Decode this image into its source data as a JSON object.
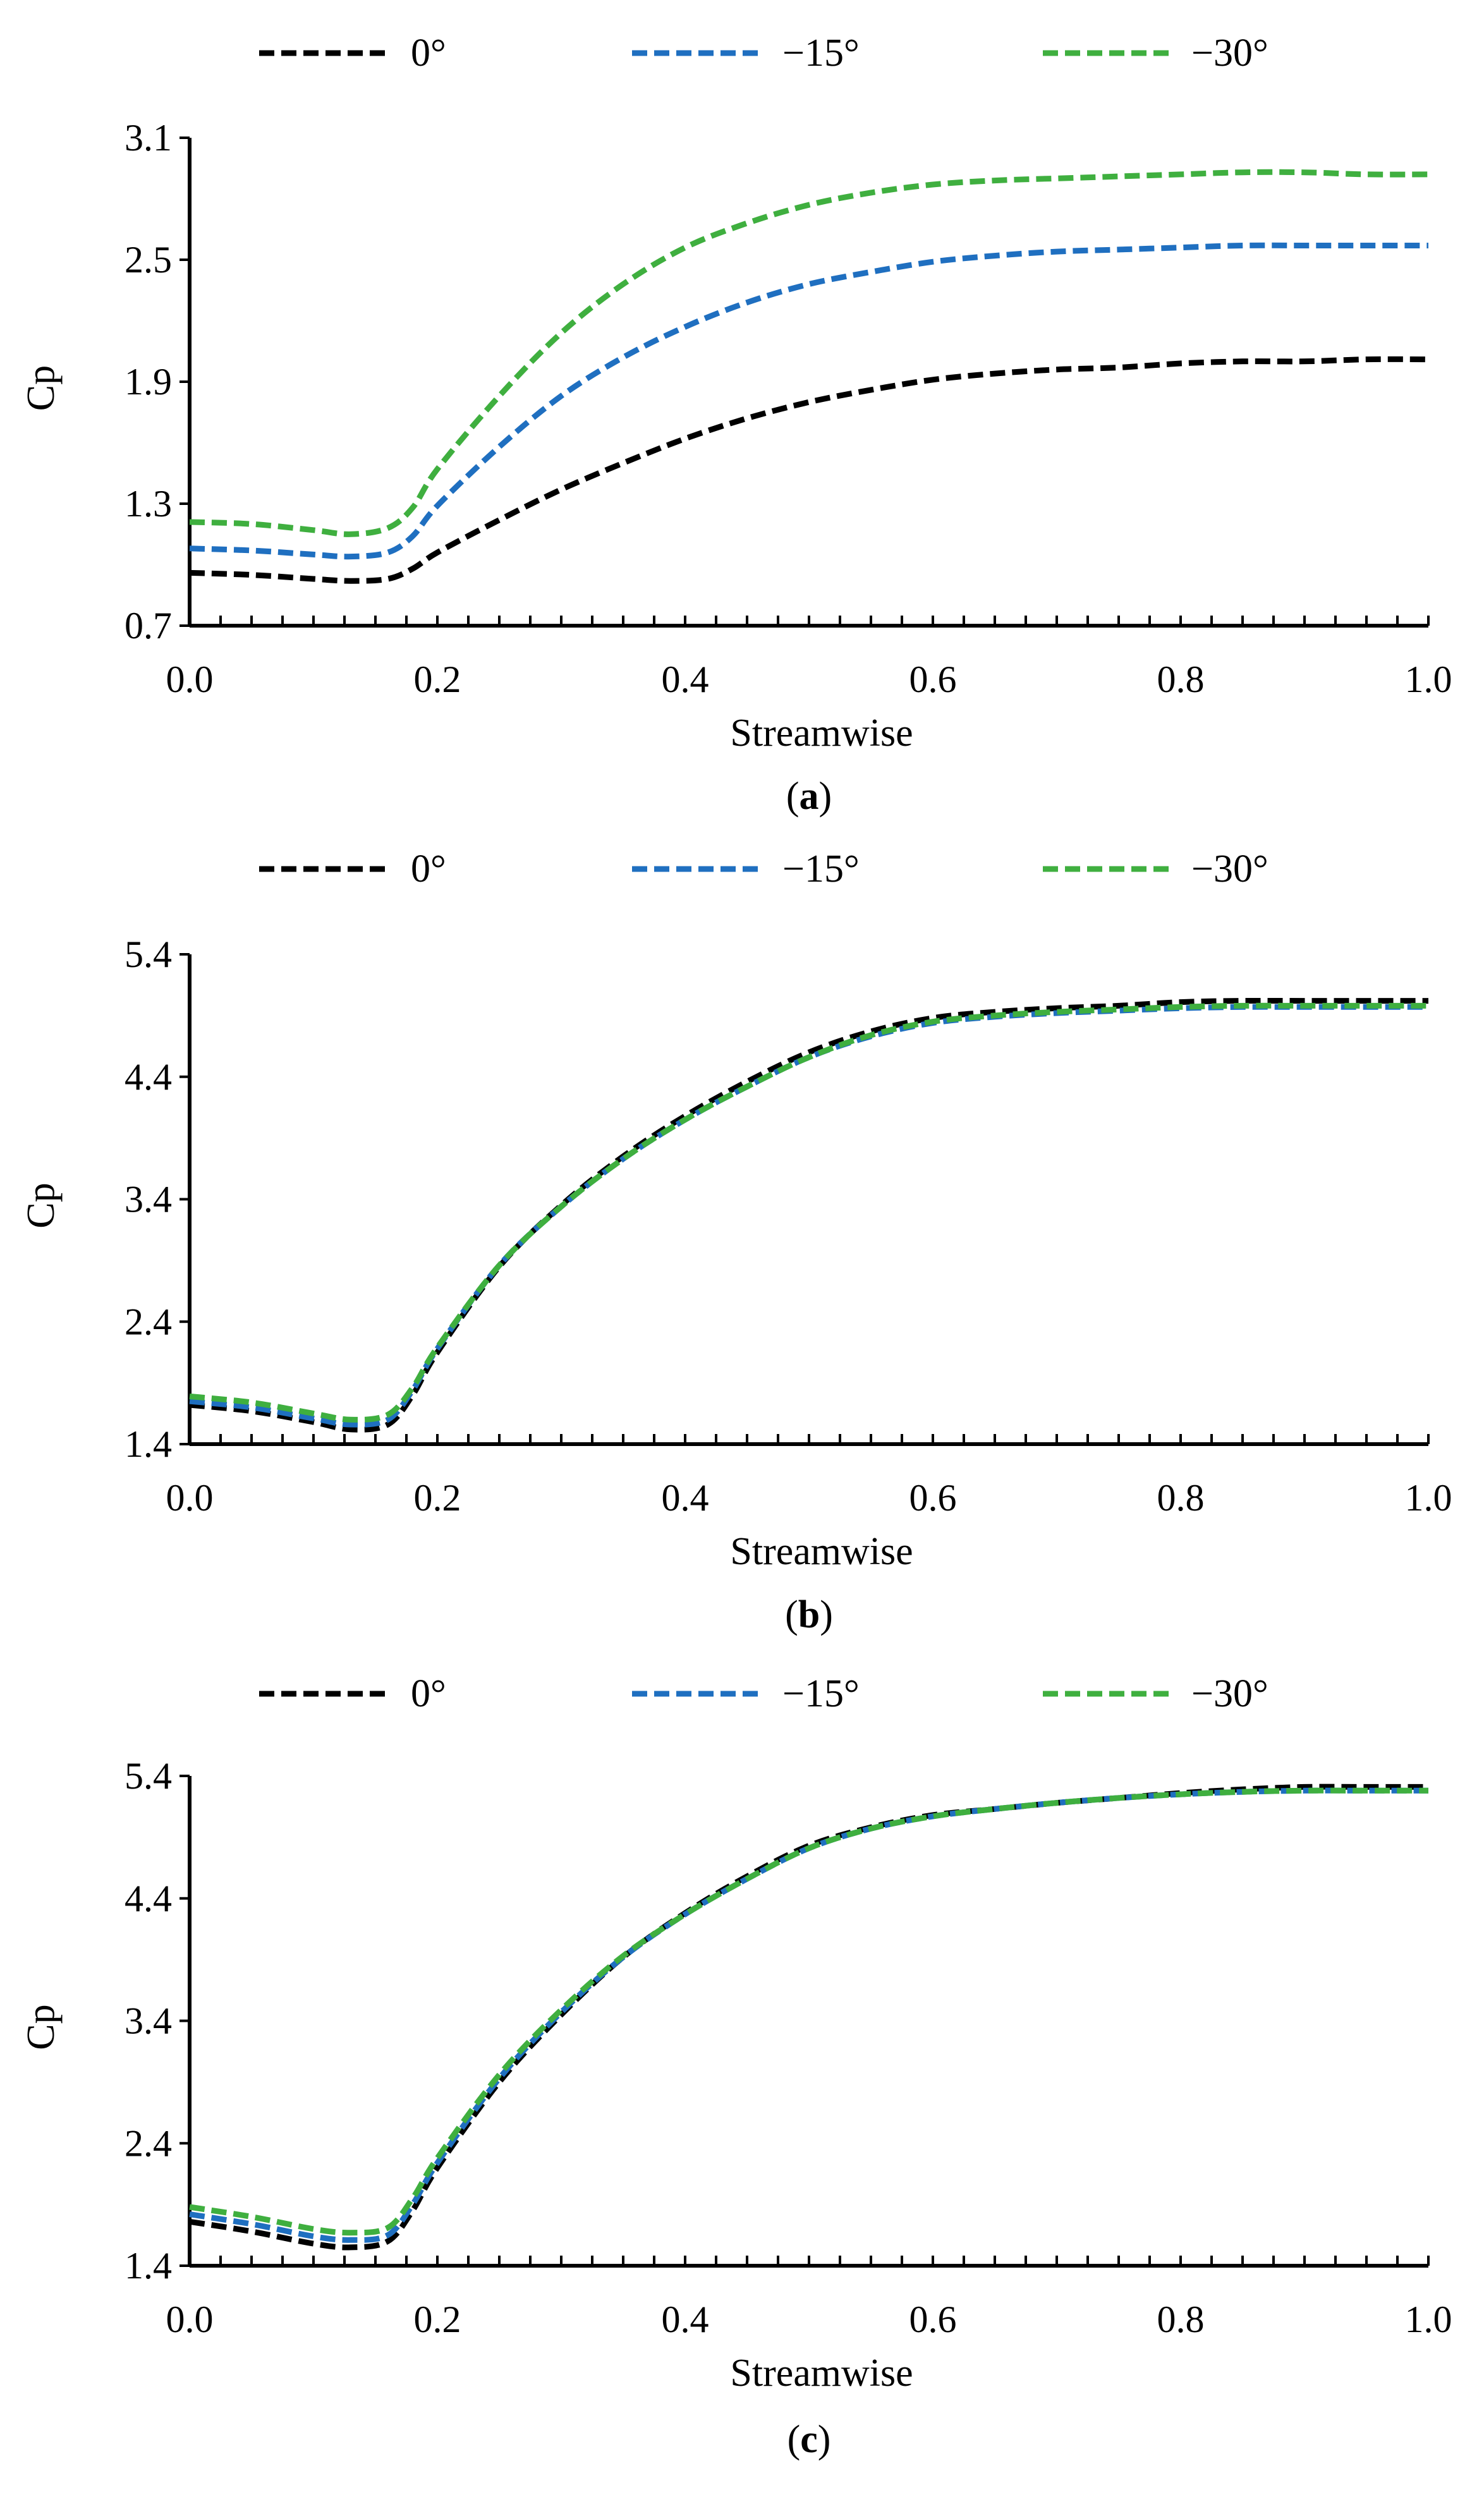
{
  "colors": {
    "series_0": "#000000",
    "series_15": "#1F6FC0",
    "series_30": "#3FAF3F"
  },
  "chart_data": [
    {
      "type": "line",
      "panel_label": "a",
      "xlabel": "Streamwise",
      "ylabel": "Cp",
      "xlim": [
        0.0,
        1.0
      ],
      "ylim": [
        0.7,
        3.1
      ],
      "xticks": [
        0.0,
        0.2,
        0.4,
        0.6,
        0.8,
        1.0
      ],
      "xtick_labels": [
        "0.0",
        "0.2",
        "0.4",
        "0.6",
        "0.8",
        "1.0"
      ],
      "yticks": [
        0.7,
        1.3,
        1.9,
        2.5,
        3.1
      ],
      "ytick_labels": [
        "0.7",
        "1.3",
        "1.9",
        "2.5",
        "3.1"
      ],
      "legend": [
        "0°",
        "−15°",
        "−30°"
      ],
      "legend_position": "top",
      "x": [
        0.0,
        0.05,
        0.1,
        0.13,
        0.16,
        0.18,
        0.2,
        0.25,
        0.3,
        0.35,
        0.4,
        0.45,
        0.5,
        0.55,
        0.6,
        0.65,
        0.7,
        0.75,
        0.8,
        0.85,
        0.9,
        0.95,
        1.0
      ],
      "series": [
        {
          "name": "0°",
          "color_key": "series_0",
          "values": [
            0.96,
            0.95,
            0.93,
            0.92,
            0.93,
            0.98,
            1.06,
            1.22,
            1.37,
            1.5,
            1.62,
            1.72,
            1.8,
            1.86,
            1.91,
            1.94,
            1.96,
            1.97,
            1.99,
            2.0,
            2.0,
            2.01,
            2.01
          ]
        },
        {
          "name": "−15°",
          "color_key": "series_15",
          "values": [
            1.08,
            1.07,
            1.05,
            1.04,
            1.06,
            1.14,
            1.29,
            1.58,
            1.83,
            2.02,
            2.17,
            2.29,
            2.38,
            2.44,
            2.49,
            2.52,
            2.54,
            2.55,
            2.56,
            2.57,
            2.57,
            2.57,
            2.57
          ]
        },
        {
          "name": "−30°",
          "color_key": "series_30",
          "values": [
            1.21,
            1.2,
            1.17,
            1.15,
            1.18,
            1.28,
            1.47,
            1.83,
            2.14,
            2.38,
            2.56,
            2.68,
            2.77,
            2.83,
            2.87,
            2.89,
            2.9,
            2.91,
            2.92,
            2.93,
            2.93,
            2.92,
            2.92
          ]
        }
      ]
    },
    {
      "type": "line",
      "panel_label": "b",
      "xlabel": "Streamwise",
      "ylabel": "Cp",
      "xlim": [
        0.0,
        1.0
      ],
      "ylim": [
        1.4,
        5.4
      ],
      "xticks": [
        0.0,
        0.2,
        0.4,
        0.6,
        0.8,
        1.0
      ],
      "xtick_labels": [
        "0.0",
        "0.2",
        "0.4",
        "0.6",
        "0.8",
        "1.0"
      ],
      "yticks": [
        1.4,
        2.4,
        3.4,
        4.4,
        5.4
      ],
      "ytick_labels": [
        "1.4",
        "2.4",
        "3.4",
        "4.4",
        "5.4"
      ],
      "legend": [
        "0°",
        "−15°",
        "−30°"
      ],
      "legend_position": "top",
      "x": [
        0.0,
        0.05,
        0.1,
        0.13,
        0.16,
        0.18,
        0.2,
        0.25,
        0.3,
        0.35,
        0.4,
        0.45,
        0.5,
        0.55,
        0.6,
        0.65,
        0.7,
        0.75,
        0.8,
        0.85,
        0.9,
        0.95,
        1.0
      ],
      "series": [
        {
          "name": "0°",
          "color_key": "series_0",
          "values": [
            1.72,
            1.67,
            1.58,
            1.52,
            1.56,
            1.8,
            2.15,
            2.85,
            3.35,
            3.75,
            4.08,
            4.36,
            4.6,
            4.77,
            4.88,
            4.93,
            4.96,
            4.98,
            5.01,
            5.02,
            5.02,
            5.02,
            5.02
          ]
        },
        {
          "name": "−15°",
          "color_key": "series_15",
          "values": [
            1.75,
            1.7,
            1.61,
            1.56,
            1.6,
            1.84,
            2.18,
            2.86,
            3.34,
            3.73,
            4.05,
            4.32,
            4.56,
            4.73,
            4.84,
            4.89,
            4.92,
            4.94,
            4.96,
            4.97,
            4.97,
            4.97,
            4.97
          ]
        },
        {
          "name": "−30°",
          "color_key": "series_30",
          "values": [
            1.79,
            1.74,
            1.65,
            1.6,
            1.64,
            1.86,
            2.19,
            2.86,
            3.34,
            3.73,
            4.05,
            4.32,
            4.56,
            4.74,
            4.85,
            4.9,
            4.93,
            4.95,
            4.97,
            4.98,
            4.98,
            4.98,
            4.98
          ]
        }
      ]
    },
    {
      "type": "line",
      "panel_label": "c",
      "xlabel": "Streamwise",
      "ylabel": "Cp",
      "xlim": [
        0.0,
        1.0
      ],
      "ylim": [
        1.4,
        5.4
      ],
      "xticks": [
        0.0,
        0.2,
        0.4,
        0.6,
        0.8,
        1.0
      ],
      "xtick_labels": [
        "0.0",
        "0.2",
        "0.4",
        "0.6",
        "0.8",
        "1.0"
      ],
      "yticks": [
        1.4,
        2.4,
        3.4,
        4.4,
        5.4
      ],
      "ytick_labels": [
        "1.4",
        "2.4",
        "3.4",
        "4.4",
        "5.4"
      ],
      "legend": [
        "0°",
        "−15°",
        "−30°"
      ],
      "legend_position": "top",
      "x": [
        0.0,
        0.05,
        0.1,
        0.13,
        0.16,
        0.18,
        0.2,
        0.25,
        0.3,
        0.35,
        0.4,
        0.45,
        0.5,
        0.55,
        0.6,
        0.65,
        0.7,
        0.75,
        0.8,
        0.85,
        0.9,
        0.95,
        1.0
      ],
      "series": [
        {
          "name": "0°",
          "color_key": "series_0",
          "values": [
            1.76,
            1.68,
            1.58,
            1.55,
            1.6,
            1.85,
            2.2,
            2.9,
            3.45,
            3.92,
            4.28,
            4.58,
            4.83,
            4.98,
            5.08,
            5.13,
            5.18,
            5.22,
            5.26,
            5.29,
            5.31,
            5.31,
            5.31
          ]
        },
        {
          "name": "−15°",
          "color_key": "series_15",
          "values": [
            1.82,
            1.74,
            1.64,
            1.61,
            1.65,
            1.9,
            2.24,
            2.93,
            3.47,
            3.92,
            4.27,
            4.56,
            4.81,
            4.97,
            5.07,
            5.13,
            5.18,
            5.22,
            5.25,
            5.27,
            5.28,
            5.28,
            5.28
          ]
        },
        {
          "name": "−30°",
          "color_key": "series_30",
          "values": [
            1.88,
            1.8,
            1.7,
            1.67,
            1.71,
            1.95,
            2.28,
            2.96,
            3.49,
            3.93,
            4.27,
            4.56,
            4.81,
            4.97,
            5.07,
            5.13,
            5.18,
            5.22,
            5.25,
            5.27,
            5.28,
            5.28,
            5.28
          ]
        }
      ]
    }
  ]
}
